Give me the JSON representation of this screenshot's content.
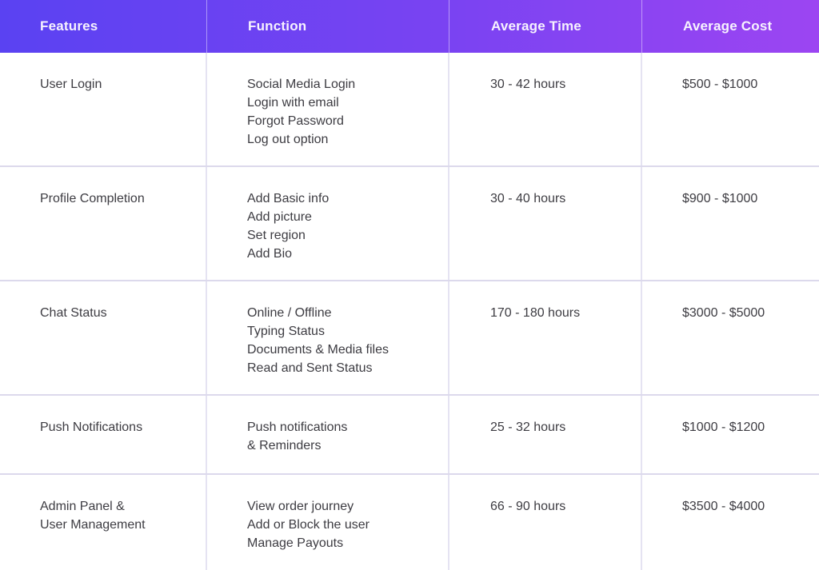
{
  "table": {
    "columns": [
      {
        "label": "Features"
      },
      {
        "label": "Function"
      },
      {
        "label": "Average Time"
      },
      {
        "label": "Average Cost"
      }
    ],
    "rows": [
      {
        "feature_lines": [
          "User Login"
        ],
        "function_lines": [
          "Social Media Login",
          "Login with email",
          "Forgot Password",
          "Log out option"
        ],
        "avg_time": "30 - 42 hours",
        "avg_cost": "$500 - $1000"
      },
      {
        "feature_lines": [
          "Profile Completion"
        ],
        "function_lines": [
          "Add Basic info",
          "Add picture",
          "Set region",
          "Add Bio"
        ],
        "avg_time": "30 - 40 hours",
        "avg_cost": "$900 - $1000"
      },
      {
        "feature_lines": [
          "Chat Status"
        ],
        "function_lines": [
          "Online / Offline",
          "Typing Status",
          "Documents & Media files",
          "Read and Sent Status"
        ],
        "avg_time": "170 - 180 hours",
        "avg_cost": "$3000 - $5000"
      },
      {
        "feature_lines": [
          "Push Notifications"
        ],
        "function_lines": [
          "Push notifications",
          "& Reminders"
        ],
        "avg_time": "25 - 32 hours",
        "avg_cost": "$1000 - $1200"
      },
      {
        "feature_lines": [
          "Admin Panel &",
          "User Management"
        ],
        "function_lines": [
          "View order journey",
          "Add or Block the user",
          "Manage Payouts"
        ],
        "avg_time": "66 - 90 hours",
        "avg_cost": "$3500 - $4000"
      }
    ]
  },
  "colors": {
    "header_gradient_start": "#5a42f2",
    "header_gradient_end": "#9c45f2",
    "header_text": "#f7f3fe",
    "body_text": "#3d3c42",
    "column_divider": "#e5e3f2",
    "row_border": "#dcd9ec"
  }
}
